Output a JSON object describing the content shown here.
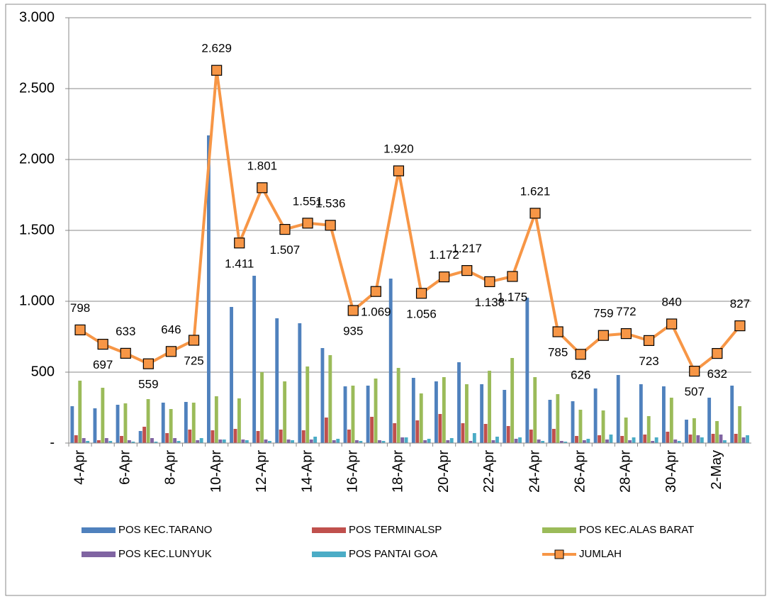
{
  "chart_data": {
    "type": "bar",
    "categories": [
      "4-Apr",
      null,
      "6-Apr",
      null,
      "8-Apr",
      null,
      "10-Apr",
      null,
      "12-Apr",
      null,
      "14-Apr",
      null,
      "16-Apr",
      null,
      "18-Apr",
      null,
      "20-Apr",
      null,
      "22-Apr",
      null,
      "24-Apr",
      null,
      "26-Apr",
      null,
      "28-Apr",
      null,
      "30-Apr",
      null,
      "2-May",
      null
    ],
    "series": [
      {
        "name": "POS KEC.TARANO",
        "color": "#4f81bd",
        "type": "bar",
        "values": [
          260,
          245,
          270,
          85,
          285,
          290,
          2170,
          960,
          1180,
          880,
          845,
          670,
          400,
          405,
          1160,
          460,
          435,
          570,
          415,
          375,
          1025,
          305,
          295,
          385,
          480,
          415,
          400,
          165,
          320,
          405
        ]
      },
      {
        "name": "POS TERMINALSP",
        "color": "#c0504d",
        "type": "bar",
        "values": [
          55,
          20,
          50,
          115,
          70,
          95,
          90,
          100,
          85,
          95,
          90,
          180,
          95,
          185,
          140,
          160,
          205,
          140,
          135,
          120,
          95,
          100,
          50,
          55,
          50,
          60,
          80,
          60,
          65,
          65
        ]
      },
      {
        "name": "POS KEC.ALAS BARAT",
        "color": "#9bbb59",
        "type": "bar",
        "values": [
          440,
          390,
          280,
          310,
          240,
          285,
          330,
          315,
          500,
          435,
          540,
          620,
          405,
          455,
          530,
          350,
          465,
          415,
          510,
          600,
          465,
          345,
          235,
          230,
          180,
          190,
          320,
          175,
          155,
          260
        ]
      },
      {
        "name": "POS KEC.LUNYUK",
        "color": "#8064a2",
        "type": "bar",
        "values": [
          35,
          35,
          20,
          35,
          35,
          20,
          25,
          25,
          25,
          25,
          25,
          20,
          20,
          20,
          40,
          20,
          20,
          15,
          20,
          30,
          25,
          15,
          20,
          25,
          20,
          15,
          25,
          55,
          60,
          40
        ]
      },
      {
        "name": "POS PANTAI GOA",
        "color": "#4bacc6",
        "type": "bar",
        "values": [
          15,
          15,
          10,
          10,
          15,
          35,
          25,
          20,
          15,
          20,
          45,
          30,
          15,
          15,
          40,
          30,
          35,
          70,
          45,
          40,
          15,
          10,
          30,
          60,
          40,
          40,
          15,
          40,
          20,
          55
        ]
      },
      {
        "name": "JUMLAH",
        "color": "#f79646",
        "type": "line",
        "values": [
          798,
          697,
          633,
          559,
          646,
          725,
          2629,
          1411,
          1801,
          1507,
          1551,
          1536,
          935,
          1069,
          1920,
          1056,
          1172,
          1217,
          1138,
          1175,
          1621,
          785,
          626,
          759,
          772,
          723,
          840,
          507,
          632,
          827
        ],
        "value_labels": [
          "798",
          "697",
          "633",
          "559",
          "646",
          "725",
          "2.629",
          "1.411",
          "1.801",
          "1.507",
          "1.551",
          "1.536",
          "935",
          "1.069",
          "1.920",
          "1.056",
          "1.172",
          "1.217",
          "1.138",
          "1.175",
          "1.621",
          "785",
          "626",
          "759",
          "772",
          "723",
          "840",
          "507",
          "632",
          "827"
        ]
      }
    ],
    "ylim": [
      0,
      3000
    ],
    "yticks": [
      {
        "value": 0,
        "label": "-"
      },
      500,
      {
        "value": 1000,
        "label": "1.000"
      },
      {
        "value": 1500,
        "label": "1.500"
      },
      {
        "value": 2000,
        "label": "2.000"
      },
      {
        "value": 2500,
        "label": "2.500"
      },
      {
        "value": 3000,
        "label": "3.000"
      }
    ],
    "grid": true,
    "legend": "bottom"
  }
}
